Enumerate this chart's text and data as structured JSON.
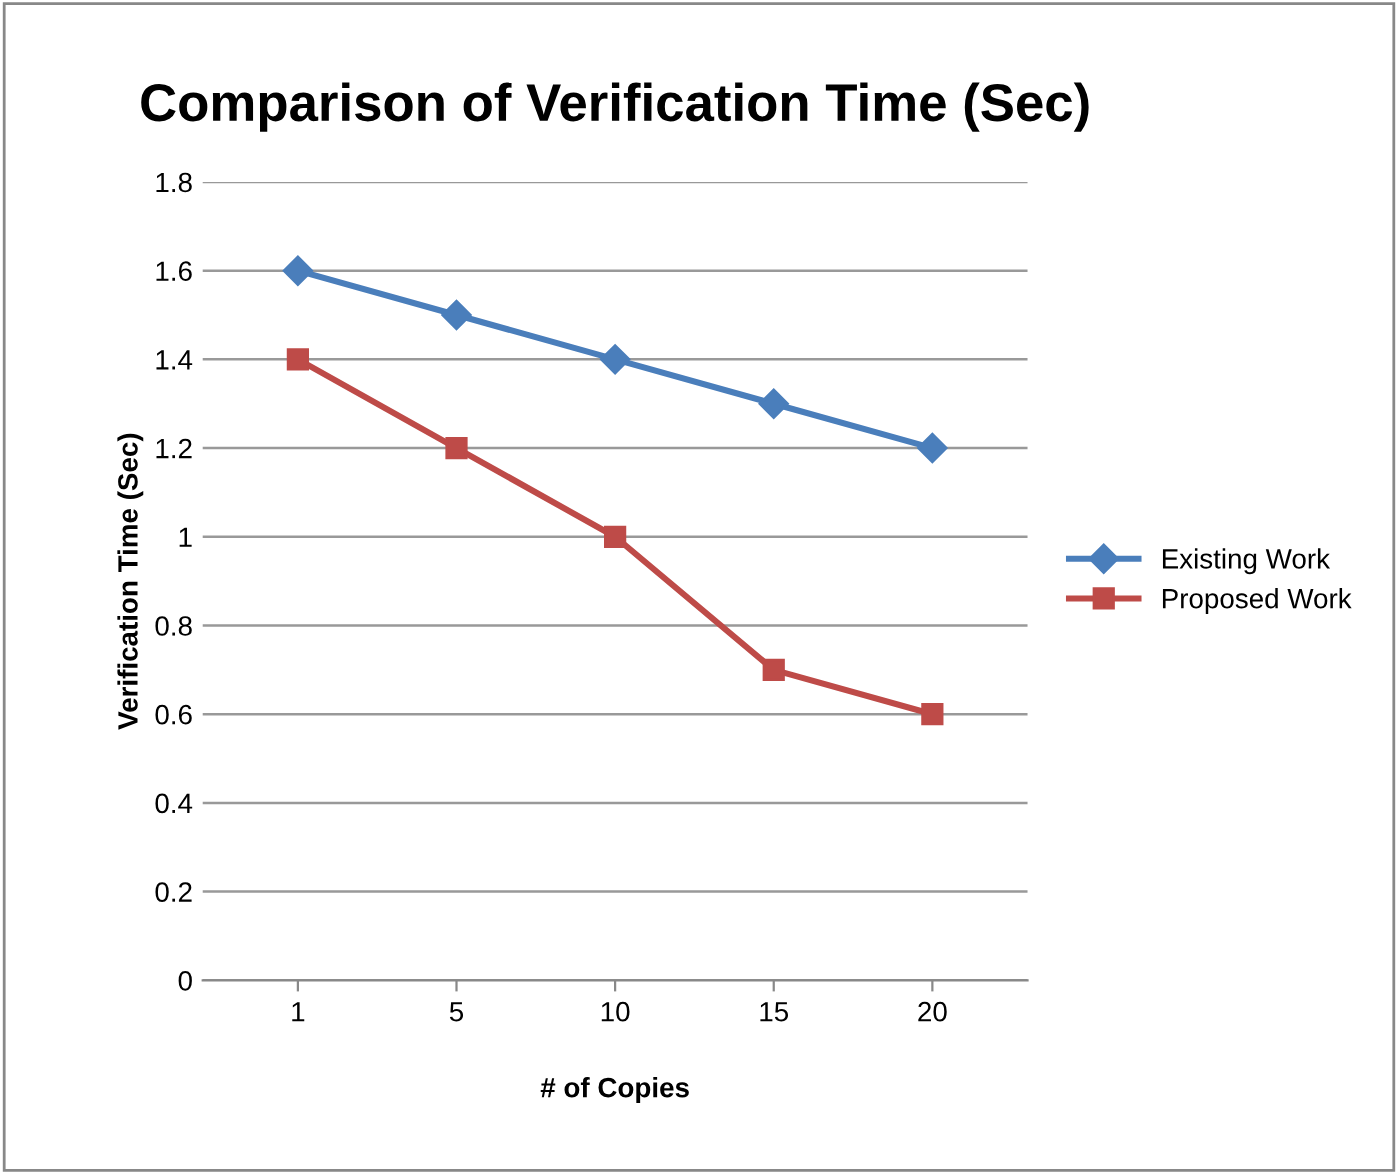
{
  "chart_data": {
    "type": "line",
    "title": "Comparison of Verification Time (Sec)",
    "xlabel": "# of Copies",
    "ylabel": "Verification Time (Sec)",
    "categories": [
      "1",
      "5",
      "10",
      "15",
      "20"
    ],
    "series": [
      {
        "name": "Existing Work",
        "color": "#4a7ebb",
        "marker": "diamond",
        "values": [
          1.6,
          1.5,
          1.4,
          1.3,
          1.2
        ]
      },
      {
        "name": "Proposed Work",
        "color": "#be4b48",
        "marker": "square",
        "values": [
          1.4,
          1.2,
          1.0,
          0.7,
          0.6
        ]
      }
    ],
    "ylim": [
      0,
      1.8
    ],
    "yticks": [
      0,
      0.2,
      0.4,
      0.6,
      0.8,
      1,
      1.2,
      1.4,
      1.6,
      1.8
    ],
    "grid": "y",
    "legend": "right"
  }
}
